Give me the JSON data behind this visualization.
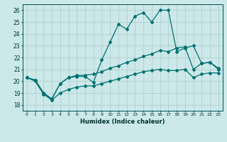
{
  "xlabel": "Humidex (Indice chaleur)",
  "xlim": [
    -0.5,
    23.5
  ],
  "ylim": [
    17.5,
    26.5
  ],
  "xticks": [
    0,
    1,
    2,
    3,
    4,
    5,
    6,
    7,
    8,
    9,
    10,
    11,
    12,
    13,
    14,
    15,
    16,
    17,
    18,
    19,
    20,
    21,
    22,
    23
  ],
  "yticks": [
    18,
    19,
    20,
    21,
    22,
    23,
    24,
    25,
    26
  ],
  "bg_color": "#cce8e8",
  "grid_color": "#aacccc",
  "line_color": "#007070",
  "line1": [
    20.3,
    20.1,
    19.0,
    18.5,
    19.8,
    20.3,
    20.4,
    20.4,
    19.9,
    21.8,
    23.3,
    24.8,
    24.4,
    25.5,
    25.8,
    25.0,
    26.0,
    26.0,
    22.5,
    22.8,
    23.0,
    21.5,
    21.6,
    21.0
  ],
  "line2": [
    20.3,
    20.1,
    19.0,
    18.5,
    19.8,
    20.3,
    20.5,
    20.5,
    20.6,
    20.8,
    21.1,
    21.3,
    21.6,
    21.8,
    22.1,
    22.3,
    22.6,
    22.5,
    22.8,
    22.9,
    21.0,
    21.5,
    21.6,
    21.1
  ],
  "line3": [
    20.3,
    20.0,
    18.9,
    18.4,
    19.0,
    19.3,
    19.5,
    19.6,
    19.6,
    19.8,
    20.0,
    20.2,
    20.4,
    20.6,
    20.8,
    20.9,
    21.0,
    20.9,
    20.9,
    21.0,
    20.3,
    20.6,
    20.7,
    20.7
  ]
}
